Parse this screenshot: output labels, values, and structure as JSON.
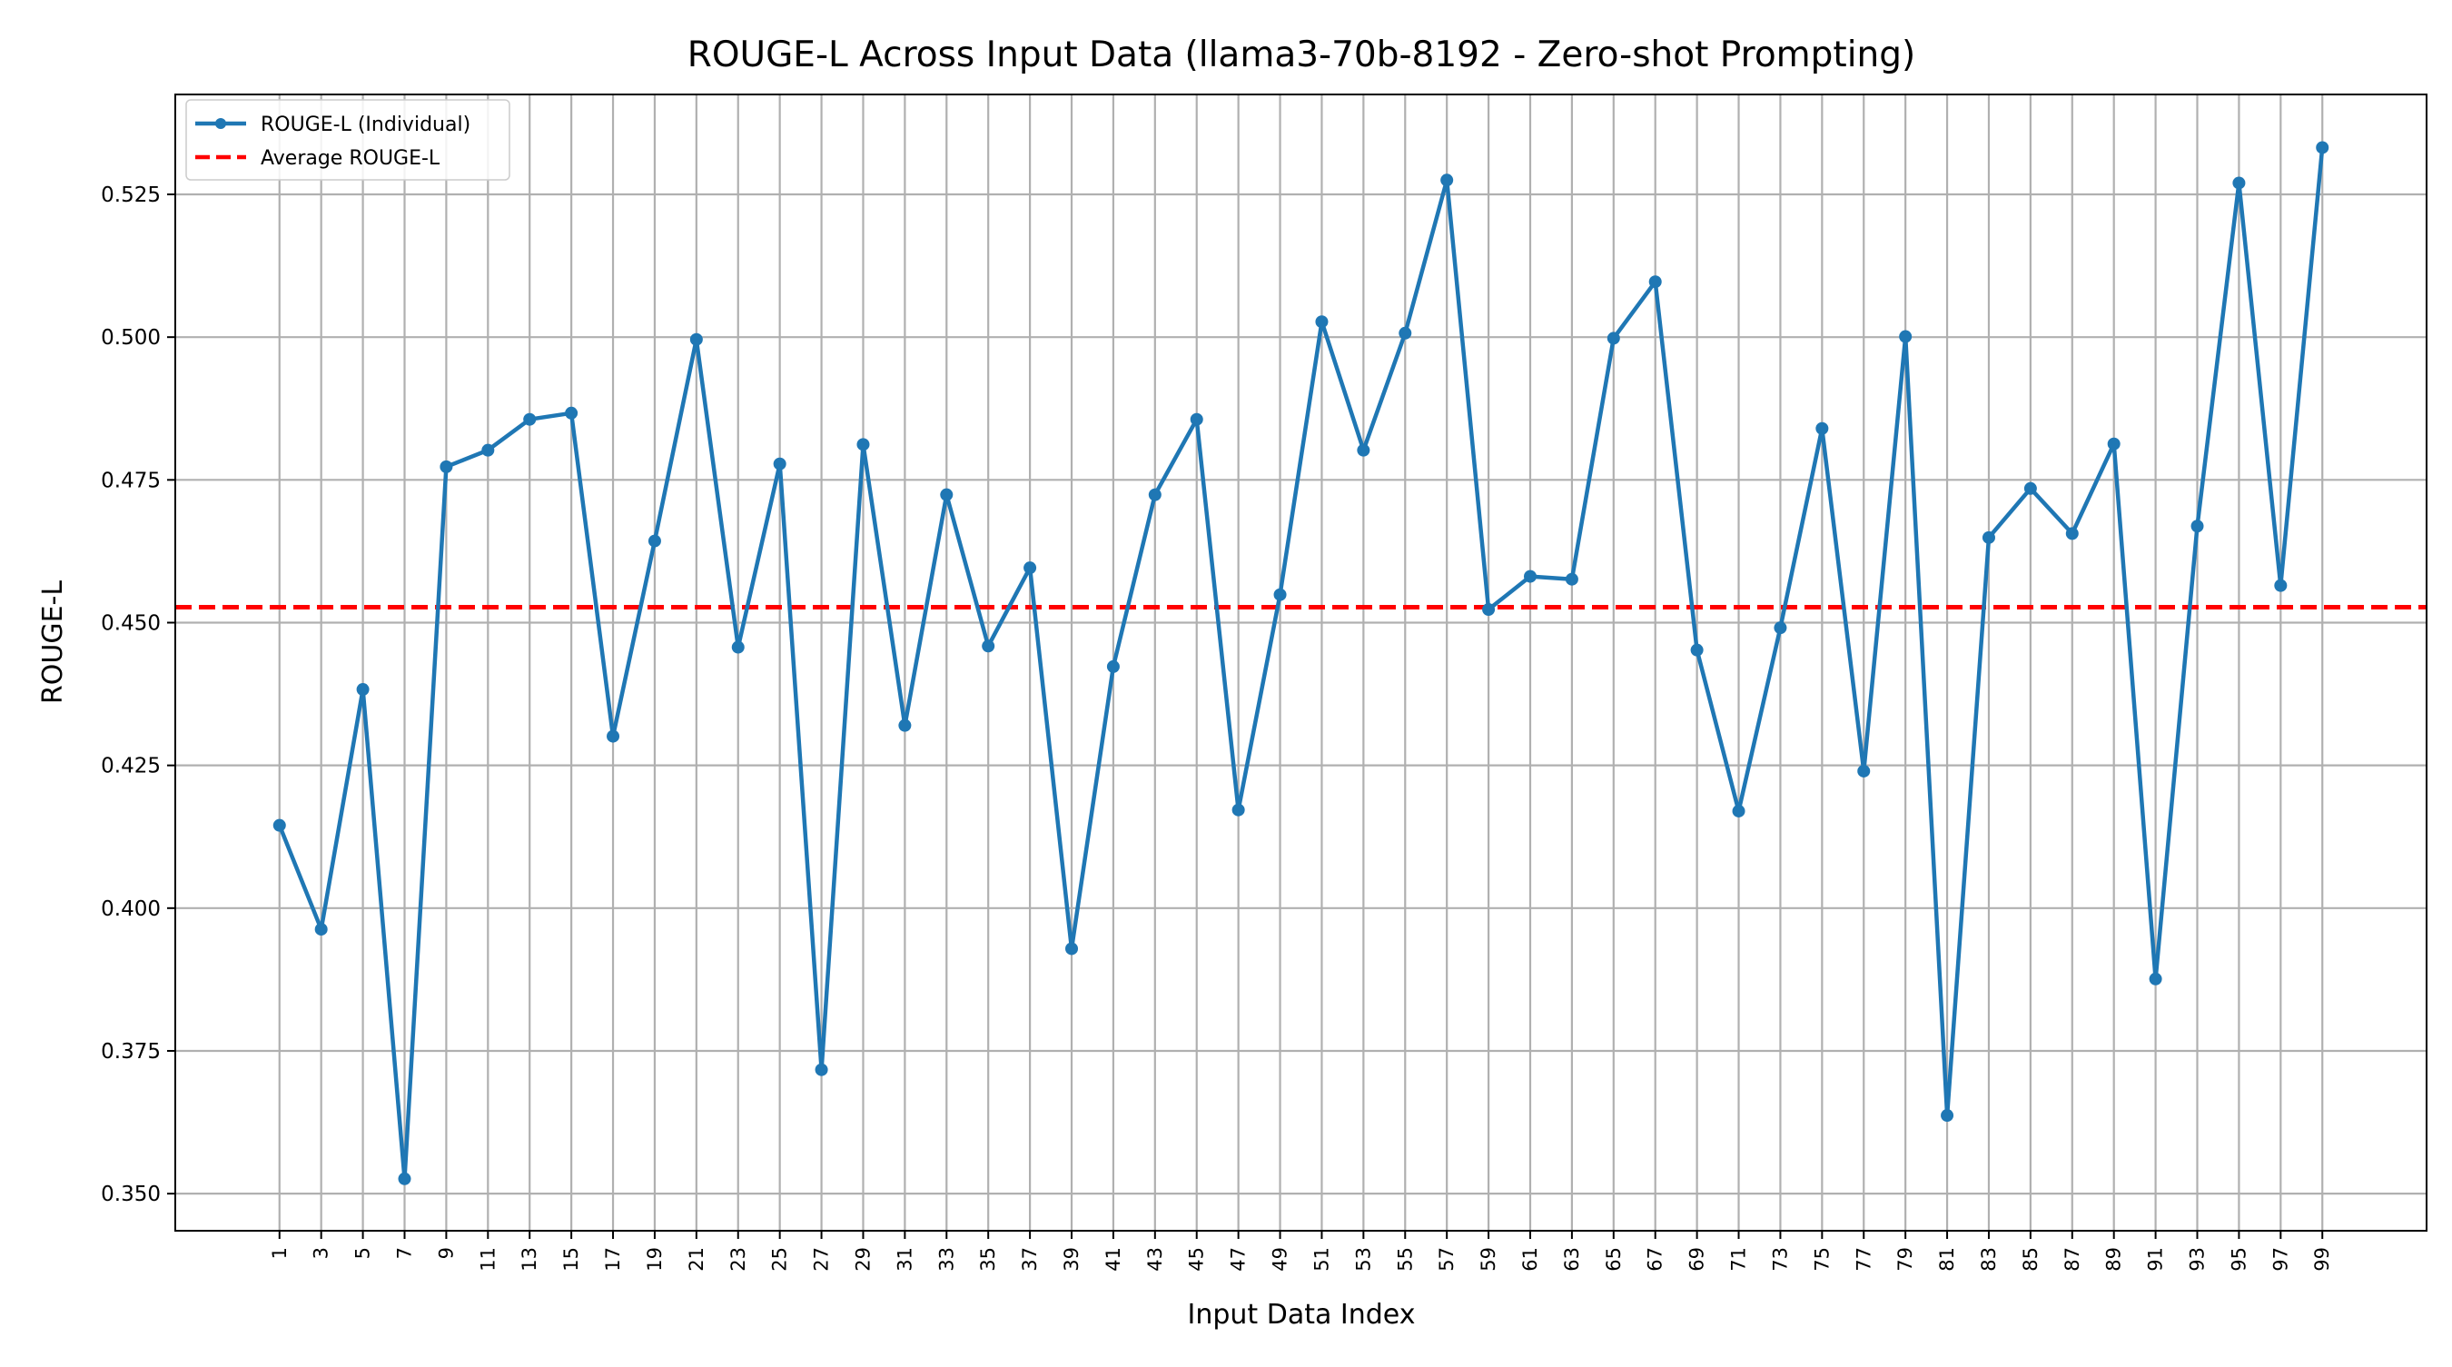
{
  "chart_data": {
    "type": "line",
    "title": "ROUGE-L Across Input Data (llama3-70b-8192 - Zero-shot Prompting)",
    "xlabel": "Input Data Index",
    "ylabel": "ROUGE-L",
    "x": [
      1,
      3,
      5,
      7,
      9,
      11,
      13,
      15,
      17,
      19,
      21,
      23,
      25,
      27,
      29,
      31,
      33,
      35,
      37,
      39,
      41,
      43,
      45,
      47,
      49,
      51,
      53,
      55,
      57,
      59,
      61,
      63,
      65,
      67,
      69,
      71,
      73,
      75,
      77,
      79,
      81,
      83,
      85,
      87,
      89,
      91,
      93,
      95,
      97,
      99
    ],
    "x_ticks": [
      "1",
      "3",
      "5",
      "7",
      "9",
      "11",
      "13",
      "15",
      "17",
      "19",
      "21",
      "23",
      "25",
      "27",
      "29",
      "31",
      "33",
      "35",
      "37",
      "39",
      "41",
      "43",
      "45",
      "47",
      "49",
      "51",
      "53",
      "55",
      "57",
      "59",
      "61",
      "63",
      "65",
      "67",
      "69",
      "71",
      "73",
      "75",
      "77",
      "79",
      "81",
      "83",
      "85",
      "87",
      "89",
      "91",
      "93",
      "95",
      "97",
      "99"
    ],
    "xlim": [
      -4,
      104
    ],
    "ylim": [
      0.3435,
      0.5425
    ],
    "y_ticks": [
      "0.350",
      "0.375",
      "0.400",
      "0.425",
      "0.450",
      "0.475",
      "0.500",
      "0.525"
    ],
    "y_tick_values": [
      0.35,
      0.375,
      0.4,
      0.425,
      0.45,
      0.475,
      0.5,
      0.525
    ],
    "grid": true,
    "legend_position": "top-left",
    "series": [
      {
        "name": "ROUGE-L (Individual)",
        "color": "#1f77b4",
        "style": "solid-with-markers",
        "values": [
          0.4145,
          0.3963,
          0.4383,
          0.3526,
          0.4773,
          0.4802,
          0.4856,
          0.4867,
          0.4301,
          0.4643,
          0.4996,
          0.4457,
          0.4778,
          0.3717,
          0.4812,
          0.432,
          0.4724,
          0.4459,
          0.4596,
          0.3929,
          0.4423,
          0.4724,
          0.4856,
          0.4172,
          0.4549,
          0.5027,
          0.4802,
          0.5007,
          0.5275,
          0.4523,
          0.4581,
          0.4576,
          0.4998,
          0.5097,
          0.4452,
          0.417,
          0.4491,
          0.484,
          0.424,
          0.5001,
          0.3637,
          0.4649,
          0.4735,
          0.4656,
          0.4813,
          0.3876,
          0.4669,
          0.527,
          0.4565,
          0.5332
        ]
      },
      {
        "name": "Average ROUGE-L",
        "color": "#ff0000",
        "style": "dashed",
        "value": 0.4527
      }
    ]
  }
}
